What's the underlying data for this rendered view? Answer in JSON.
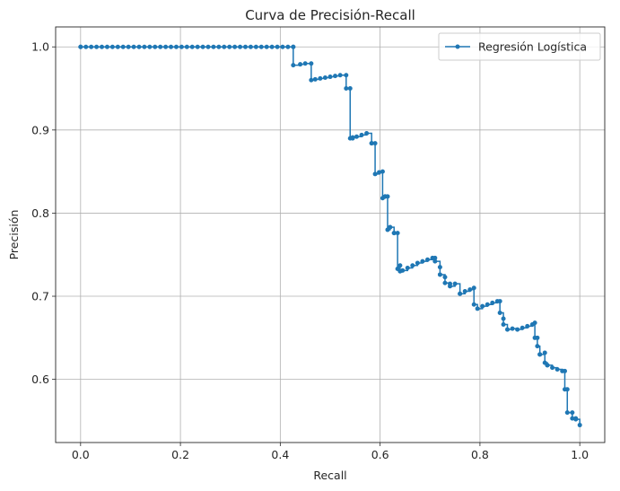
{
  "chart_data": {
    "type": "line",
    "title": "Curva de Precisión-Recall",
    "xlabel": "Recall",
    "ylabel": "Precisión",
    "xlim": [
      -0.05,
      1.05
    ],
    "ylim": [
      0.524,
      1.024
    ],
    "xticks": [
      "0.0",
      "0.2",
      "0.4",
      "0.6",
      "0.8",
      "1.0"
    ],
    "yticks": [
      "0.6",
      "0.7",
      "0.8",
      "0.9",
      "1.0"
    ],
    "grid": true,
    "legend_position": "top-right",
    "color": "#1f77b4",
    "series": [
      {
        "name": "Regresión Logística",
        "marker": "circle",
        "drawstyle": "steps",
        "x": [
          0.0,
          0.426,
          0.426,
          0.44,
          0.45,
          0.462,
          0.462,
          0.47,
          0.48,
          0.49,
          0.5,
          0.51,
          0.52,
          0.532,
          0.532,
          0.54,
          0.54,
          0.545,
          0.545,
          0.553,
          0.563,
          0.573,
          0.583,
          0.583,
          0.59,
          0.59,
          0.598,
          0.605,
          0.605,
          0.61,
          0.61,
          0.615,
          0.615,
          0.62,
          0.62,
          0.628,
          0.628,
          0.635,
          0.635,
          0.64,
          0.64,
          0.645,
          0.655,
          0.665,
          0.675,
          0.685,
          0.695,
          0.705,
          0.71,
          0.71,
          0.72,
          0.72,
          0.73,
          0.73,
          0.74,
          0.74,
          0.75,
          0.76,
          0.76,
          0.77,
          0.78,
          0.788,
          0.788,
          0.795,
          0.805,
          0.815,
          0.825,
          0.835,
          0.84,
          0.84,
          0.847,
          0.847,
          0.855,
          0.865,
          0.875,
          0.885,
          0.895,
          0.905,
          0.91,
          0.91,
          0.915,
          0.915,
          0.92,
          0.92,
          0.93,
          0.93,
          0.935,
          0.935,
          0.945,
          0.955,
          0.965,
          0.97,
          0.97,
          0.975,
          0.975,
          0.985,
          0.985,
          0.992,
          0.992,
          1.0
        ],
        "y": [
          1.0,
          1.0,
          0.978,
          0.979,
          0.98,
          0.98,
          0.96,
          0.961,
          0.962,
          0.963,
          0.964,
          0.965,
          0.966,
          0.966,
          0.95,
          0.95,
          0.89,
          0.89,
          0.891,
          0.892,
          0.894,
          0.896,
          0.884,
          0.884,
          0.884,
          0.847,
          0.849,
          0.85,
          0.818,
          0.82,
          0.82,
          0.82,
          0.78,
          0.783,
          0.783,
          0.776,
          0.776,
          0.776,
          0.733,
          0.737,
          0.73,
          0.731,
          0.734,
          0.737,
          0.74,
          0.742,
          0.744,
          0.746,
          0.746,
          0.742,
          0.735,
          0.726,
          0.723,
          0.716,
          0.715,
          0.712,
          0.715,
          0.703,
          0.703,
          0.706,
          0.708,
          0.71,
          0.69,
          0.685,
          0.688,
          0.69,
          0.692,
          0.694,
          0.694,
          0.68,
          0.673,
          0.666,
          0.66,
          0.661,
          0.66,
          0.662,
          0.664,
          0.666,
          0.668,
          0.65,
          0.65,
          0.64,
          0.63,
          0.63,
          0.632,
          0.62,
          0.617,
          0.617,
          0.614,
          0.612,
          0.61,
          0.61,
          0.588,
          0.588,
          0.56,
          0.56,
          0.553,
          0.553,
          0.552,
          0.545
        ]
      }
    ]
  }
}
